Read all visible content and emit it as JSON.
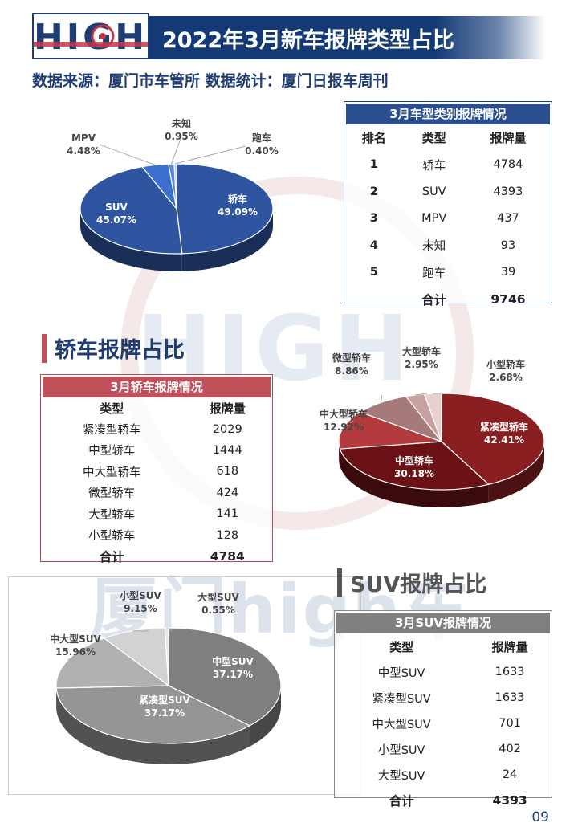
{
  "header": {
    "logo_text": "HIGH",
    "title": "2022年3月新车报牌类型占比",
    "source": "数据来源：厦门市车管所  数据统计：厦门日报车周刊"
  },
  "watermark": {
    "logo": "HIGH",
    "text": "厦门high车"
  },
  "colors": {
    "brand_blue": "#1f3d73",
    "sedan_red": "#c0505a",
    "suv_gray": "#808080"
  },
  "sections": {
    "sedan": "轿车报牌占比",
    "suv": "SUV报牌占比"
  },
  "tables": {
    "type": {
      "caption": "3月车型类别报牌情况",
      "headers": [
        "排名",
        "类型",
        "报牌量"
      ],
      "rows": [
        [
          "1",
          "轿车",
          "4784"
        ],
        [
          "2",
          "SUV",
          "4393"
        ],
        [
          "3",
          "MPV",
          "437"
        ],
        [
          "4",
          "未知",
          "93"
        ],
        [
          "5",
          "跑车",
          "39"
        ]
      ],
      "total_label": "合计",
      "total_value": "9746"
    },
    "sedan": {
      "caption": "3月轿车报牌情况",
      "headers": [
        "类型",
        "报牌量"
      ],
      "rows": [
        [
          "紧凑型轿车",
          "2029"
        ],
        [
          "中型轿车",
          "1444"
        ],
        [
          "中大型轿车",
          "618"
        ],
        [
          "微型轿车",
          "424"
        ],
        [
          "大型轿车",
          "141"
        ],
        [
          "小型轿车",
          "128"
        ]
      ],
      "total_label": "合计",
      "total_value": "4784"
    },
    "suv": {
      "caption": "3月SUV报牌情况",
      "headers": [
        "类型",
        "报牌量"
      ],
      "rows": [
        [
          "中型SUV",
          "1633"
        ],
        [
          "紧凑型SUV",
          "1633"
        ],
        [
          "中大型SUV",
          "701"
        ],
        [
          "小型SUV",
          "402"
        ],
        [
          "大型SUV",
          "24"
        ]
      ],
      "total_label": "合计",
      "total_value": "4393"
    }
  },
  "chart_data": [
    {
      "type": "pie",
      "title": "",
      "categories": [
        "轿车",
        "SUV",
        "MPV",
        "未知",
        "跑车"
      ],
      "values": [
        49.09,
        45.07,
        4.48,
        0.95,
        0.4
      ],
      "labels": [
        "49.09%",
        "45.07%",
        "4.48%",
        "0.95%",
        "0.40%"
      ],
      "colors": [
        "#2f55a0",
        "#2f55a0",
        "#3d6fd0",
        "#5f86d6",
        "#b9c8e8"
      ]
    },
    {
      "type": "pie",
      "title": "",
      "categories": [
        "紧凑型轿车",
        "中型轿车",
        "中大型轿车",
        "微型轿车",
        "大型轿车",
        "小型轿车"
      ],
      "values": [
        42.41,
        30.18,
        12.92,
        8.86,
        2.95,
        2.68
      ],
      "labels": [
        "42.41%",
        "30.18%",
        "12.92%",
        "8.86%",
        "2.95%",
        "2.68%"
      ],
      "colors": [
        "#8a1f22",
        "#6a1216",
        "#b33a3d",
        "#a67a7a",
        "#c8a0a0",
        "#e6d0d0"
      ]
    },
    {
      "type": "pie",
      "title": "",
      "categories": [
        "中型SUV",
        "紧凑型SUV",
        "中大型SUV",
        "小型SUV",
        "大型SUV"
      ],
      "values": [
        37.17,
        37.17,
        15.96,
        9.15,
        0.55
      ],
      "labels": [
        "37.17%",
        "37.17%",
        "15.96%",
        "9.15%",
        "0.55%"
      ],
      "colors": [
        "#7f7f7f",
        "#959595",
        "#b1b1b1",
        "#d2d2d2",
        "#e6e6e6"
      ]
    }
  ],
  "page_number": "09"
}
